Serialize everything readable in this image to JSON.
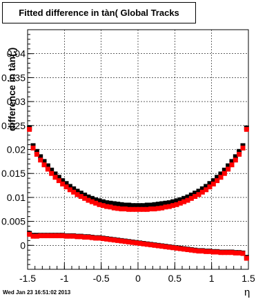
{
  "chart_data": {
    "type": "scatter",
    "title": "Fitted difference in tàn( Global Tracks",
    "xlabel": "η",
    "ylabel": "difference in tàn(.)",
    "xlim": [
      -1.5,
      1.5
    ],
    "ylim": [
      -0.005,
      0.045
    ],
    "x_ticks": [
      "-1.5",
      "-1",
      "-0.5",
      "0",
      "0.5",
      "1",
      "1.5"
    ],
    "y_ticks": [
      "0",
      "0.005",
      "0.01",
      "0.015",
      "0.02",
      "0.025",
      "0.03",
      "0.035",
      "0.04"
    ],
    "grid": true,
    "series": [
      {
        "color": "#000000",
        "marker": "square",
        "x": [
          -1.475,
          -1.425,
          -1.375,
          -1.325,
          -1.275,
          -1.225,
          -1.175,
          -1.125,
          -1.075,
          -1.025,
          -0.975,
          -0.925,
          -0.875,
          -0.825,
          -0.775,
          -0.725,
          -0.675,
          -0.625,
          -0.575,
          -0.525,
          -0.475,
          -0.425,
          -0.375,
          -0.325,
          -0.275,
          -0.225,
          -0.175,
          -0.125,
          -0.075,
          -0.025,
          0.025,
          0.075,
          0.125,
          0.175,
          0.225,
          0.275,
          0.325,
          0.375,
          0.425,
          0.475,
          0.525,
          0.575,
          0.625,
          0.675,
          0.725,
          0.775,
          0.825,
          0.875,
          0.925,
          0.975,
          1.025,
          1.075,
          1.125,
          1.175,
          1.225,
          1.275,
          1.325,
          1.375,
          1.425,
          1.475
        ],
        "y": [
          0.0245,
          0.0208,
          0.0196,
          0.0185,
          0.0175,
          0.0166,
          0.0157,
          0.0149,
          0.0142,
          0.0135,
          0.0129,
          0.0123,
          0.0118,
          0.0113,
          0.0109,
          0.0105,
          0.0101,
          0.0098,
          0.0095,
          0.0093,
          0.0091,
          0.0089,
          0.0088,
          0.0087,
          0.0086,
          0.0085,
          0.0084,
          0.0084,
          0.0083,
          0.0083,
          0.0083,
          0.0083,
          0.0084,
          0.0084,
          0.0085,
          0.0086,
          0.0087,
          0.0088,
          0.0089,
          0.0091,
          0.0093,
          0.0095,
          0.0098,
          0.0101,
          0.0105,
          0.0109,
          0.0113,
          0.0118,
          0.0123,
          0.0129,
          0.0135,
          0.0142,
          0.0149,
          0.0157,
          0.0166,
          0.0175,
          0.0185,
          0.0196,
          0.0208,
          0.0245
        ]
      },
      {
        "color": "#ff0000",
        "marker": "square",
        "x": [
          -1.475,
          -1.425,
          -1.375,
          -1.325,
          -1.275,
          -1.225,
          -1.175,
          -1.125,
          -1.075,
          -1.025,
          -0.975,
          -0.925,
          -0.875,
          -0.825,
          -0.775,
          -0.725,
          -0.675,
          -0.625,
          -0.575,
          -0.525,
          -0.475,
          -0.425,
          -0.375,
          -0.325,
          -0.275,
          -0.225,
          -0.175,
          -0.125,
          -0.075,
          -0.025,
          0.025,
          0.075,
          0.125,
          0.175,
          0.225,
          0.275,
          0.325,
          0.375,
          0.425,
          0.475,
          0.525,
          0.575,
          0.625,
          0.675,
          0.725,
          0.775,
          0.825,
          0.875,
          0.925,
          0.975,
          1.025,
          1.075,
          1.125,
          1.175,
          1.225,
          1.275,
          1.325,
          1.375,
          1.425,
          1.475
        ],
        "y": [
          0.0242,
          0.0203,
          0.019,
          0.0178,
          0.0168,
          0.0159,
          0.015,
          0.0142,
          0.0135,
          0.0128,
          0.0122,
          0.0116,
          0.0111,
          0.0106,
          0.0102,
          0.0098,
          0.0094,
          0.0091,
          0.0088,
          0.0085,
          0.0083,
          0.0081,
          0.008,
          0.0078,
          0.0077,
          0.0076,
          0.0076,
          0.0075,
          0.0075,
          0.0075,
          0.0075,
          0.0075,
          0.0075,
          0.0076,
          0.0076,
          0.0077,
          0.0078,
          0.008,
          0.0081,
          0.0083,
          0.0085,
          0.0088,
          0.0091,
          0.0094,
          0.0098,
          0.0102,
          0.0106,
          0.0111,
          0.0116,
          0.0122,
          0.0128,
          0.0135,
          0.0142,
          0.015,
          0.0159,
          0.0168,
          0.0178,
          0.019,
          0.0203,
          0.0242
        ]
      },
      {
        "color": "#000000",
        "marker": "square",
        "x": [
          -1.475,
          -1.425,
          -1.375,
          -1.325,
          -1.275,
          -1.225,
          -1.175,
          -1.125,
          -1.075,
          -1.025,
          -0.975,
          -0.925,
          -0.875,
          -0.825,
          -0.775,
          -0.725,
          -0.675,
          -0.625,
          -0.575,
          -0.525,
          -0.475,
          -0.425,
          -0.375,
          -0.325,
          -0.275,
          -0.225,
          -0.175,
          -0.125,
          -0.075,
          -0.025,
          0.025,
          0.075,
          0.125,
          0.175,
          0.225,
          0.275,
          0.325,
          0.375,
          0.425,
          0.475,
          0.525,
          0.575,
          0.625,
          0.675,
          0.725,
          0.775,
          0.825,
          0.875,
          0.925,
          0.975,
          1.025,
          1.075,
          1.125,
          1.175,
          1.225,
          1.275,
          1.325,
          1.375,
          1.425,
          1.475
        ],
        "y": [
          0.0025,
          0.0021,
          0.0021,
          0.0021,
          0.0021,
          0.0021,
          0.0021,
          0.0021,
          0.0021,
          0.0021,
          0.002,
          0.002,
          0.002,
          0.0019,
          0.0019,
          0.0018,
          0.0018,
          0.0017,
          0.0016,
          0.0016,
          0.0015,
          0.0014,
          0.0013,
          0.0012,
          0.0011,
          0.001,
          0.0009,
          0.0008,
          0.0007,
          0.0006,
          0.0005,
          0.0004,
          0.0003,
          0.0002,
          0.0001,
          0.0,
          -0.0001,
          -0.0002,
          -0.0003,
          -0.0004,
          -0.0005,
          -0.0006,
          -0.0007,
          -0.0008,
          -0.0009,
          -0.001,
          -0.0011,
          -0.0011,
          -0.0012,
          -0.0012,
          -0.0013,
          -0.0013,
          -0.0014,
          -0.0014,
          -0.0014,
          -0.0014,
          -0.0015,
          -0.0015,
          -0.0016,
          -0.0025
        ]
      },
      {
        "color": "#ff0000",
        "marker": "square",
        "x": [
          -1.475,
          -1.425,
          -1.375,
          -1.325,
          -1.275,
          -1.225,
          -1.175,
          -1.125,
          -1.075,
          -1.025,
          -0.975,
          -0.925,
          -0.875,
          -0.825,
          -0.775,
          -0.725,
          -0.675,
          -0.625,
          -0.575,
          -0.525,
          -0.475,
          -0.425,
          -0.375,
          -0.325,
          -0.275,
          -0.225,
          -0.175,
          -0.125,
          -0.075,
          -0.025,
          0.025,
          0.075,
          0.125,
          0.175,
          0.225,
          0.275,
          0.325,
          0.375,
          0.425,
          0.475,
          0.525,
          0.575,
          0.625,
          0.675,
          0.725,
          0.775,
          0.825,
          0.875,
          0.925,
          0.975,
          1.025,
          1.075,
          1.125,
          1.175,
          1.225,
          1.275,
          1.325,
          1.375,
          1.425,
          1.475
        ],
        "y": [
          0.0023,
          0.0019,
          0.0019,
          0.002,
          0.002,
          0.002,
          0.002,
          0.002,
          0.002,
          0.002,
          0.0019,
          0.0019,
          0.0019,
          0.0018,
          0.0018,
          0.0017,
          0.0017,
          0.0016,
          0.0015,
          0.0015,
          0.0014,
          0.0013,
          0.0012,
          0.0011,
          0.001,
          0.0009,
          0.0008,
          0.0007,
          0.0006,
          0.0005,
          0.0004,
          0.0003,
          0.0002,
          0.0001,
          0.0,
          -0.0001,
          -0.0002,
          -0.0003,
          -0.0004,
          -0.0005,
          -0.0006,
          -0.0007,
          -0.0008,
          -0.0009,
          -0.001,
          -0.0011,
          -0.0012,
          -0.0012,
          -0.0013,
          -0.0013,
          -0.0014,
          -0.0014,
          -0.0015,
          -0.0015,
          -0.0015,
          -0.0015,
          -0.0016,
          -0.0016,
          -0.0017,
          -0.0027
        ]
      }
    ]
  },
  "footer": {
    "timestamp": "Wed Jan 23 16:51:02 2013"
  }
}
